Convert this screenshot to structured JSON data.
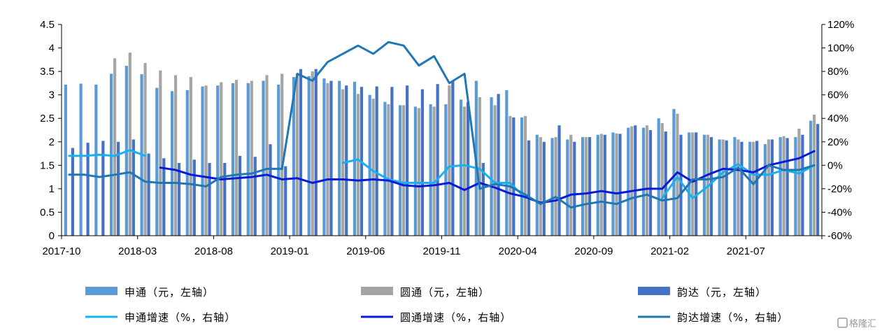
{
  "chart_data": {
    "type": "bar",
    "title": "",
    "x": [
      "2017-10",
      "2017-11",
      "2017-12",
      "2018-01",
      "2018-02",
      "2018-03",
      "2018-04",
      "2018-05",
      "2018-06",
      "2018-07",
      "2018-08",
      "2018-09",
      "2018-10",
      "2018-11",
      "2018-12",
      "2019-01",
      "2019-02",
      "2019-03",
      "2019-04",
      "2019-05",
      "2019-06",
      "2019-07",
      "2019-08",
      "2019-09",
      "2019-10",
      "2019-11",
      "2019-12",
      "2020-01",
      "2020-02",
      "2020-03",
      "2020-04",
      "2020-05",
      "2020-06",
      "2020-07",
      "2020-08",
      "2020-09",
      "2020-10",
      "2020-11",
      "2020-12",
      "2021-01",
      "2021-02",
      "2021-03",
      "2021-04",
      "2021-05",
      "2021-06",
      "2021-07",
      "2021-08",
      "2021-09",
      "2021-10",
      "2021-11"
    ],
    "x_tick_labels": [
      "2017-10",
      "2018-03",
      "2018-08",
      "2019-01",
      "2019-06",
      "2019-11",
      "2020-04",
      "2020-09",
      "2021-02",
      "2021-07"
    ],
    "x_tick_index": [
      0,
      5,
      10,
      15,
      20,
      25,
      30,
      35,
      40,
      45
    ],
    "y_left": {
      "ticks": [
        "0",
        "0.5",
        "1",
        "1.5",
        "2",
        "2.5",
        "3",
        "3.5",
        "4",
        "4.5"
      ],
      "min": 0,
      "max": 4.5
    },
    "y_right": {
      "ticks": [
        "-60%",
        "-40%",
        "-20%",
        "0%",
        "20%",
        "40%",
        "60%",
        "80%",
        "100%",
        "120%"
      ],
      "min": -60,
      "max": 120
    },
    "bar_series": [
      {
        "name": "申通（元，左轴）",
        "color": "#5b9bd5",
        "axis": "left",
        "values": [
          3.22,
          3.24,
          3.22,
          3.45,
          3.62,
          3.44,
          3.15,
          3.08,
          3.1,
          3.18,
          3.2,
          3.25,
          3.25,
          3.3,
          3.22,
          3.38,
          3.4,
          3.35,
          3.3,
          3.28,
          3.0,
          2.85,
          2.78,
          2.75,
          2.8,
          2.8,
          2.9,
          3.3,
          2.95,
          3.1,
          2.52,
          2.15,
          2.08,
          2.05,
          2.1,
          2.15,
          2.2,
          2.3,
          2.3,
          2.5,
          2.7,
          2.2,
          2.15,
          2.05,
          2.1,
          2.0,
          1.95,
          2.1,
          2.1,
          2.45
        ]
      },
      {
        "name": "圆通（元，左轴）",
        "color": "#a5a5a5",
        "axis": "left",
        "values": [
          0,
          0,
          0,
          3.78,
          3.9,
          3.68,
          3.52,
          3.42,
          3.38,
          3.2,
          3.27,
          3.32,
          3.3,
          3.42,
          3.45,
          3.45,
          3.5,
          3.25,
          3.12,
          3.02,
          2.92,
          2.8,
          2.78,
          2.72,
          2.75,
          3.2,
          2.75,
          2.95,
          2.78,
          2.55,
          2.55,
          2.1,
          2.1,
          2.15,
          2.1,
          2.17,
          2.18,
          2.33,
          2.35,
          2.4,
          2.6,
          2.2,
          2.15,
          2.05,
          2.05,
          2.0,
          2.05,
          2.12,
          2.28,
          2.58
        ]
      },
      {
        "name": "韵达（元，左轴）",
        "color": "#4472c4",
        "axis": "left",
        "values": [
          1.87,
          1.98,
          2.02,
          2.0,
          2.05,
          1.75,
          1.65,
          1.55,
          1.62,
          1.55,
          1.55,
          1.7,
          1.68,
          1.95,
          1.48,
          3.55,
          3.55,
          3.3,
          3.2,
          3.17,
          3.18,
          3.17,
          3.2,
          3.12,
          3.23,
          3.3,
          2.85,
          1.55,
          3.02,
          2.52,
          2.03,
          2.0,
          2.35,
          2.0,
          2.1,
          2.15,
          2.17,
          2.35,
          2.25,
          2.22,
          2.15,
          2.2,
          2.1,
          2.03,
          2.0,
          2.02,
          2.05,
          2.08,
          2.15,
          2.38
        ]
      }
    ],
    "line_series": [
      {
        "name": "申通增速（%，右轴）",
        "color": "#17b1f0",
        "axis": "right",
        "values": [
          8,
          8,
          9,
          8,
          13,
          8,
          null,
          null,
          null,
          null,
          null,
          null,
          null,
          null,
          null,
          null,
          null,
          null,
          2,
          5,
          -5,
          -12,
          -15,
          -15,
          -15,
          -1,
          0,
          -3,
          -15,
          -15,
          -28,
          null,
          null,
          null,
          null,
          null,
          null,
          null,
          null,
          -28,
          -10,
          -28,
          -18,
          -6,
          1,
          -8,
          -8,
          -4,
          -7,
          0
        ]
      },
      {
        "name": "圆通增速（%，右轴）",
        "color": "#0b1ad8",
        "axis": "right",
        "values": [
          null,
          null,
          null,
          null,
          null,
          null,
          -2,
          -4,
          -8,
          -10,
          -12,
          -11,
          -10,
          -8,
          -12,
          -11,
          -15,
          -12,
          -12,
          -13,
          -12,
          -13,
          -17,
          -18,
          -17,
          -15,
          -21,
          -15,
          -19,
          -24,
          -27,
          -32,
          -30,
          -25,
          -24,
          -22,
          -24,
          -22,
          -20,
          -20,
          -6,
          -14,
          -8,
          -3,
          -4,
          -6,
          0,
          3,
          6,
          12
        ]
      },
      {
        "name": "韵达增速（%，右轴）",
        "color": "#1f77b4",
        "axis": "right",
        "values": [
          -8,
          -8,
          -10,
          -8,
          -6,
          -14,
          -15,
          -15,
          -16,
          -18,
          -10,
          -8,
          -7,
          -3,
          -3,
          78,
          72,
          88,
          95,
          102,
          95,
          105,
          102,
          85,
          93,
          70,
          78,
          -20,
          -16,
          -18,
          -25,
          -33,
          -27,
          -36,
          -33,
          -31,
          -33,
          -28,
          -25,
          -30,
          -28,
          -12,
          -12,
          -10,
          -2,
          -16,
          0,
          -4,
          -4,
          0
        ]
      }
    ]
  },
  "legend": [
    {
      "label": "申通（元，左轴）",
      "kind": "bar",
      "color": "#5b9bd5"
    },
    {
      "label": "圆通（元，左轴）",
      "kind": "bar",
      "color": "#a5a5a5"
    },
    {
      "label": "韵达（元，左轴）",
      "kind": "bar",
      "color": "#4472c4"
    },
    {
      "label": "申通增速（%，右轴）",
      "kind": "line",
      "color": "#17b1f0"
    },
    {
      "label": "圆通增速（%，右轴）",
      "kind": "line",
      "color": "#0b1ad8"
    },
    {
      "label": "韵达增速（%，右轴）",
      "kind": "line",
      "color": "#1f77b4"
    }
  ],
  "watermark": {
    "text": "格隆汇",
    "icon": "gelonghui-logo-icon"
  }
}
